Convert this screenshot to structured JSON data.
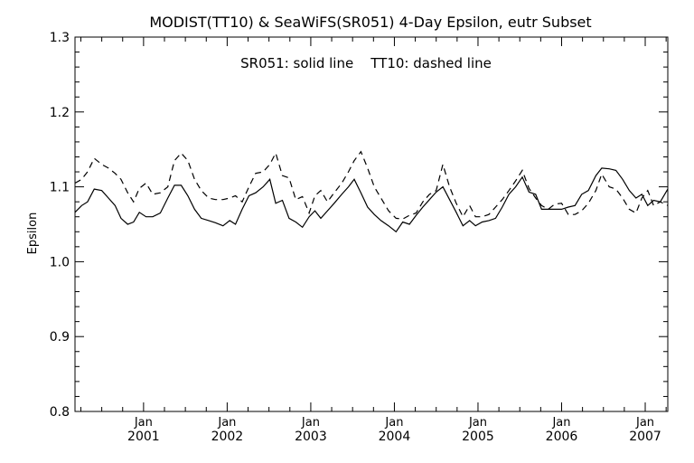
{
  "chart_data": {
    "type": "line",
    "title": "MODIST(TT10) & SeaWiFS(SR051) 4-Day Epsilon, eutr Subset",
    "annotation": "SR051: solid line    TT10: dashed line",
    "ylabel": "Epsilon",
    "xlabel": "",
    "ylim": [
      0.8,
      1.3
    ],
    "xlim": [
      2000.18,
      2007.27
    ],
    "y_ticks": [
      "0.8",
      "0.9",
      "1.0",
      "1.1",
      "1.2",
      "1.3"
    ],
    "x_ticks": [
      {
        "month": "Jan",
        "year": "2001"
      },
      {
        "month": "Jan",
        "year": "2002"
      },
      {
        "month": "Jan",
        "year": "2003"
      },
      {
        "month": "Jan",
        "year": "2004"
      },
      {
        "month": "Jan",
        "year": "2005"
      },
      {
        "month": "Jan",
        "year": "2006"
      },
      {
        "month": "Jan",
        "year": "2007"
      }
    ],
    "grid": false,
    "series": [
      {
        "name": "SR051",
        "style": "solid",
        "points": [
          [
            2000.18,
            1.066
          ],
          [
            2000.26,
            1.075
          ],
          [
            2000.33,
            1.08
          ],
          [
            2000.41,
            1.097
          ],
          [
            2000.5,
            1.095
          ],
          [
            2000.58,
            1.085
          ],
          [
            2000.66,
            1.075
          ],
          [
            2000.73,
            1.058
          ],
          [
            2000.81,
            1.05
          ],
          [
            2000.88,
            1.053
          ],
          [
            2000.95,
            1.066
          ],
          [
            2001.03,
            1.06
          ],
          [
            2001.11,
            1.06
          ],
          [
            2001.2,
            1.065
          ],
          [
            2001.29,
            1.085
          ],
          [
            2001.37,
            1.102
          ],
          [
            2001.45,
            1.102
          ],
          [
            2001.53,
            1.088
          ],
          [
            2001.61,
            1.07
          ],
          [
            2001.69,
            1.058
          ],
          [
            2001.78,
            1.055
          ],
          [
            2001.86,
            1.052
          ],
          [
            2001.95,
            1.048
          ],
          [
            2002.03,
            1.055
          ],
          [
            2002.1,
            1.05
          ],
          [
            2002.18,
            1.07
          ],
          [
            2002.26,
            1.088
          ],
          [
            2002.34,
            1.092
          ],
          [
            2002.43,
            1.1
          ],
          [
            2002.51,
            1.11
          ],
          [
            2002.58,
            1.078
          ],
          [
            2002.66,
            1.082
          ],
          [
            2002.74,
            1.058
          ],
          [
            2002.82,
            1.053
          ],
          [
            2002.9,
            1.046
          ],
          [
            2002.98,
            1.06
          ],
          [
            2003.05,
            1.068
          ],
          [
            2003.12,
            1.058
          ],
          [
            2003.2,
            1.068
          ],
          [
            2003.28,
            1.078
          ],
          [
            2003.37,
            1.09
          ],
          [
            2003.45,
            1.1
          ],
          [
            2003.52,
            1.11
          ],
          [
            2003.6,
            1.092
          ],
          [
            2003.68,
            1.073
          ],
          [
            2003.76,
            1.063
          ],
          [
            2003.84,
            1.055
          ],
          [
            2003.93,
            1.048
          ],
          [
            2004.02,
            1.04
          ],
          [
            2004.1,
            1.053
          ],
          [
            2004.18,
            1.05
          ],
          [
            2004.26,
            1.062
          ],
          [
            2004.34,
            1.073
          ],
          [
            2004.42,
            1.083
          ],
          [
            2004.5,
            1.093
          ],
          [
            2004.58,
            1.1
          ],
          [
            2004.66,
            1.083
          ],
          [
            2004.74,
            1.066
          ],
          [
            2004.82,
            1.048
          ],
          [
            2004.9,
            1.055
          ],
          [
            2004.97,
            1.048
          ],
          [
            2005.05,
            1.053
          ],
          [
            2005.13,
            1.055
          ],
          [
            2005.21,
            1.058
          ],
          [
            2005.29,
            1.073
          ],
          [
            2005.37,
            1.09
          ],
          [
            2005.45,
            1.1
          ],
          [
            2005.53,
            1.113
          ],
          [
            2005.61,
            1.093
          ],
          [
            2005.69,
            1.09
          ],
          [
            2005.76,
            1.07
          ],
          [
            2005.84,
            1.07
          ],
          [
            2005.92,
            1.07
          ],
          [
            2006.0,
            1.07
          ],
          [
            2006.08,
            1.073
          ],
          [
            2006.16,
            1.075
          ],
          [
            2006.24,
            1.09
          ],
          [
            2006.32,
            1.095
          ],
          [
            2006.41,
            1.115
          ],
          [
            2006.48,
            1.125
          ],
          [
            2006.57,
            1.124
          ],
          [
            2006.65,
            1.122
          ],
          [
            2006.73,
            1.11
          ],
          [
            2006.81,
            1.095
          ],
          [
            2006.89,
            1.085
          ],
          [
            2006.96,
            1.09
          ],
          [
            2007.03,
            1.075
          ],
          [
            2007.1,
            1.082
          ],
          [
            2007.18,
            1.08
          ],
          [
            2007.27,
            1.097
          ]
        ]
      },
      {
        "name": "TT10",
        "style": "dashed",
        "points": [
          [
            2000.18,
            1.105
          ],
          [
            2000.26,
            1.11
          ],
          [
            2000.33,
            1.12
          ],
          [
            2000.41,
            1.138
          ],
          [
            2000.5,
            1.13
          ],
          [
            2000.58,
            1.125
          ],
          [
            2000.66,
            1.118
          ],
          [
            2000.73,
            1.11
          ],
          [
            2000.81,
            1.092
          ],
          [
            2000.88,
            1.08
          ],
          [
            2000.95,
            1.098
          ],
          [
            2001.03,
            1.105
          ],
          [
            2001.11,
            1.09
          ],
          [
            2001.2,
            1.092
          ],
          [
            2001.29,
            1.1
          ],
          [
            2001.37,
            1.135
          ],
          [
            2001.45,
            1.145
          ],
          [
            2001.53,
            1.135
          ],
          [
            2001.61,
            1.11
          ],
          [
            2001.69,
            1.095
          ],
          [
            2001.78,
            1.085
          ],
          [
            2001.86,
            1.083
          ],
          [
            2001.95,
            1.083
          ],
          [
            2002.03,
            1.085
          ],
          [
            2002.1,
            1.088
          ],
          [
            2002.18,
            1.08
          ],
          [
            2002.26,
            1.1
          ],
          [
            2002.34,
            1.118
          ],
          [
            2002.43,
            1.12
          ],
          [
            2002.51,
            1.13
          ],
          [
            2002.58,
            1.145
          ],
          [
            2002.66,
            1.115
          ],
          [
            2002.74,
            1.112
          ],
          [
            2002.82,
            1.083
          ],
          [
            2002.9,
            1.087
          ],
          [
            2002.98,
            1.065
          ],
          [
            2003.05,
            1.088
          ],
          [
            2003.12,
            1.095
          ],
          [
            2003.2,
            1.08
          ],
          [
            2003.28,
            1.092
          ],
          [
            2003.37,
            1.105
          ],
          [
            2003.45,
            1.12
          ],
          [
            2003.52,
            1.135
          ],
          [
            2003.6,
            1.147
          ],
          [
            2003.68,
            1.125
          ],
          [
            2003.76,
            1.1
          ],
          [
            2003.84,
            1.085
          ],
          [
            2003.93,
            1.068
          ],
          [
            2004.02,
            1.058
          ],
          [
            2004.1,
            1.057
          ],
          [
            2004.18,
            1.062
          ],
          [
            2004.26,
            1.065
          ],
          [
            2004.34,
            1.08
          ],
          [
            2004.42,
            1.09
          ],
          [
            2004.5,
            1.095
          ],
          [
            2004.58,
            1.13
          ],
          [
            2004.66,
            1.1
          ],
          [
            2004.74,
            1.078
          ],
          [
            2004.82,
            1.06
          ],
          [
            2004.9,
            1.075
          ],
          [
            2004.97,
            1.06
          ],
          [
            2005.05,
            1.06
          ],
          [
            2005.13,
            1.063
          ],
          [
            2005.21,
            1.073
          ],
          [
            2005.29,
            1.083
          ],
          [
            2005.37,
            1.095
          ],
          [
            2005.45,
            1.108
          ],
          [
            2005.53,
            1.122
          ],
          [
            2005.61,
            1.098
          ],
          [
            2005.69,
            1.085
          ],
          [
            2005.76,
            1.075
          ],
          [
            2005.84,
            1.07
          ],
          [
            2005.92,
            1.077
          ],
          [
            2006.0,
            1.078
          ],
          [
            2006.08,
            1.063
          ],
          [
            2006.16,
            1.063
          ],
          [
            2006.24,
            1.068
          ],
          [
            2006.32,
            1.078
          ],
          [
            2006.41,
            1.095
          ],
          [
            2006.48,
            1.117
          ],
          [
            2006.57,
            1.1
          ],
          [
            2006.65,
            1.097
          ],
          [
            2006.73,
            1.085
          ],
          [
            2006.81,
            1.07
          ],
          [
            2006.89,
            1.065
          ],
          [
            2006.96,
            1.085
          ],
          [
            2007.03,
            1.095
          ],
          [
            2007.1,
            1.075
          ],
          [
            2007.18,
            1.08
          ],
          [
            2007.27,
            1.075
          ]
        ]
      }
    ]
  }
}
